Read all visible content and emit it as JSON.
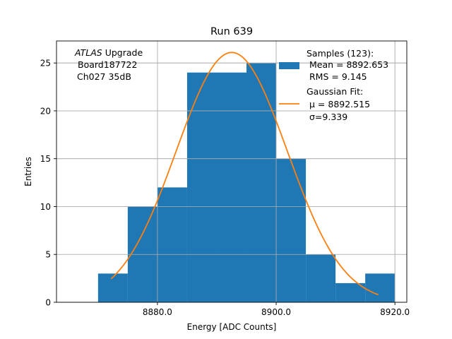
{
  "chart_data": {
    "type": "bar",
    "title": "Run 639",
    "xlabel": "Energy [ADC Counts]",
    "ylabel": "Entries",
    "xlim": [
      8863.0,
      8922.0
    ],
    "ylim": [
      0,
      27.3
    ],
    "grid": true,
    "bins": [
      {
        "x0": 8870.0,
        "x1": 8875.0,
        "count": 3
      },
      {
        "x0": 8875.0,
        "x1": 8880.0,
        "count": 10
      },
      {
        "x0": 8880.0,
        "x1": 8885.0,
        "count": 12
      },
      {
        "x0": 8885.0,
        "x1": 8890.0,
        "count": 24
      },
      {
        "x0": 8890.0,
        "x1": 8895.0,
        "count": 24
      },
      {
        "x0": 8895.0,
        "x1": 8900.0,
        "count": 25
      },
      {
        "x0": 8900.0,
        "x1": 8905.0,
        "count": 15
      },
      {
        "x0": 8905.0,
        "x1": 8910.0,
        "count": 5
      },
      {
        "x0": 8910.0,
        "x1": 8915.0,
        "count": 2
      },
      {
        "x0": 8915.0,
        "x1": 8920.0,
        "count": 3
      }
    ],
    "x_ticks": [
      {
        "value": 8880.0,
        "label": "8880.0"
      },
      {
        "value": 8900.0,
        "label": "8900.0"
      },
      {
        "value": 8920.0,
        "label": "8920.0"
      }
    ],
    "y_ticks": [
      {
        "value": 0,
        "label": "0"
      },
      {
        "value": 5,
        "label": "5"
      },
      {
        "value": 10,
        "label": "10"
      },
      {
        "value": 15,
        "label": "15"
      },
      {
        "value": 20,
        "label": "20"
      },
      {
        "value": 25,
        "label": "25"
      }
    ],
    "fit": {
      "type": "gaussian",
      "mu": 8892.515,
      "sigma": 9.339,
      "amplitude": 26.1,
      "x_range": [
        8872.2,
        8917.2
      ]
    },
    "colors": {
      "histogram": "#1f77b4",
      "fit": "#ff7f0e",
      "grid": "#b0b0b0"
    },
    "annotation": {
      "line1_italic": "ATLAS",
      "line1_rest": " Upgrade",
      "line2": "Board187722",
      "line3": "Ch027 35dB"
    },
    "legend": {
      "placement": "top-right",
      "samples_label": "Samples (123):",
      "mean_label": "Mean = 8892.653",
      "rms_label": "RMS = 9.145",
      "fit_label": "Gaussian Fit:",
      "mu_label": "μ = 8892.515",
      "sigma_label": "σ=9.339"
    }
  }
}
